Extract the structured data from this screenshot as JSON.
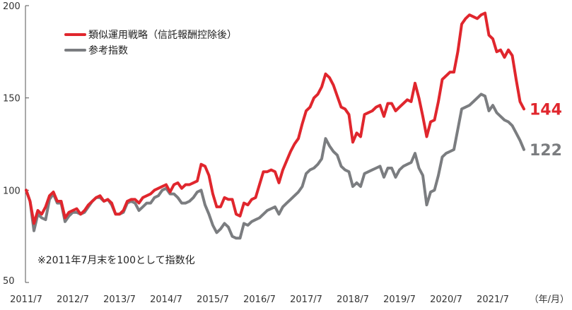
{
  "chart_data": {
    "type": "line",
    "title": "",
    "xlabel": "",
    "ylabel": "",
    "x_unit_label": "（年/月）",
    "ylim": [
      50,
      200
    ],
    "y_ticks": [
      50,
      100,
      150,
      200
    ],
    "x_tick_labels": [
      "2011/7",
      "2012/7",
      "2013/7",
      "2014/7",
      "2015/7",
      "2016/7",
      "2017/7",
      "2018/7",
      "2019/7",
      "2020/7",
      "2021/7"
    ],
    "grid": false,
    "legend_position": "top-left",
    "note": "※2011年7月末を100として指数化",
    "x": [
      "2011/7",
      "2011/8",
      "2011/9",
      "2011/10",
      "2011/11",
      "2011/12",
      "2012/1",
      "2012/2",
      "2012/3",
      "2012/4",
      "2012/5",
      "2012/6",
      "2012/7",
      "2012/8",
      "2012/9",
      "2012/10",
      "2012/11",
      "2012/12",
      "2013/1",
      "2013/2",
      "2013/3",
      "2013/4",
      "2013/5",
      "2013/6",
      "2013/7",
      "2013/8",
      "2013/9",
      "2013/10",
      "2013/11",
      "2013/12",
      "2014/1",
      "2014/2",
      "2014/3",
      "2014/4",
      "2014/5",
      "2014/6",
      "2014/7",
      "2014/8",
      "2014/9",
      "2014/10",
      "2014/11",
      "2014/12",
      "2015/1",
      "2015/2",
      "2015/3",
      "2015/4",
      "2015/5",
      "2015/6",
      "2015/7",
      "2015/8",
      "2015/9",
      "2015/10",
      "2015/11",
      "2015/12",
      "2016/1",
      "2016/2",
      "2016/3",
      "2016/4",
      "2016/5",
      "2016/6",
      "2016/7",
      "2016/8",
      "2016/9",
      "2016/10",
      "2016/11",
      "2016/12",
      "2017/1",
      "2017/2",
      "2017/3",
      "2017/4",
      "2017/5",
      "2017/6",
      "2017/7",
      "2017/8",
      "2017/9",
      "2017/10",
      "2017/11",
      "2017/12",
      "2018/1",
      "2018/2",
      "2018/3",
      "2018/4",
      "2018/5",
      "2018/6",
      "2018/7",
      "2018/8",
      "2018/9",
      "2018/10",
      "2018/11",
      "2018/12",
      "2019/1",
      "2019/2",
      "2019/3",
      "2019/4",
      "2019/5",
      "2019/6",
      "2019/7",
      "2019/8",
      "2019/9",
      "2019/10",
      "2019/11",
      "2019/12",
      "2020/1",
      "2020/2",
      "2020/3",
      "2020/4",
      "2020/5",
      "2020/6",
      "2020/7",
      "2020/8",
      "2020/9",
      "2020/10",
      "2020/11",
      "2020/12",
      "2021/1",
      "2021/2",
      "2021/3",
      "2021/4",
      "2021/5",
      "2021/6",
      "2021/7",
      "2021/8",
      "2021/9",
      "2021/10",
      "2021/11",
      "2021/12",
      "2022/1",
      "2022/2",
      "2022/3"
    ],
    "series": [
      {
        "name": "類似運用戦略（信託報酬控除後）",
        "color": "#e0262d",
        "end_label": "144",
        "values": [
          100,
          94,
          82,
          89,
          87,
          91,
          97,
          99,
          94,
          94,
          85,
          88,
          89,
          90,
          87,
          89,
          92,
          94,
          96,
          97,
          94,
          95,
          93,
          87,
          87,
          89,
          94,
          95,
          95,
          93,
          96,
          97,
          98,
          100,
          101,
          102,
          103,
          99,
          103,
          104,
          101,
          103,
          103,
          104,
          105,
          114,
          113,
          108,
          98,
          91,
          91,
          96,
          95,
          95,
          87,
          86,
          93,
          92,
          95,
          96,
          103,
          110,
          110,
          111,
          110,
          104,
          111,
          116,
          121,
          125,
          128,
          136,
          143,
          145,
          150,
          152,
          156,
          163,
          161,
          157,
          151,
          145,
          144,
          141,
          126,
          131,
          129,
          141,
          142,
          143,
          145,
          146,
          140,
          147,
          147,
          143,
          145,
          147,
          149,
          148,
          158,
          150,
          140,
          129,
          137,
          138,
          148,
          160,
          162,
          164,
          164,
          175,
          190,
          193,
          195,
          194,
          193,
          195,
          196,
          184,
          182,
          175,
          176,
          172,
          176,
          173,
          160,
          148,
          144
        ]
      },
      {
        "name": "参考指数",
        "color": "#7b7d80",
        "end_label": "122",
        "values": [
          100,
          94,
          78,
          87,
          85,
          84,
          95,
          98,
          93,
          93,
          83,
          86,
          88,
          88,
          87,
          88,
          91,
          94,
          96,
          96,
          94,
          95,
          92,
          87,
          87,
          88,
          93,
          94,
          93,
          89,
          91,
          93,
          93,
          96,
          97,
          100,
          101,
          98,
          98,
          96,
          93,
          93,
          94,
          96,
          99,
          100,
          92,
          87,
          81,
          77,
          79,
          82,
          80,
          75,
          74,
          74,
          82,
          81,
          83,
          84,
          85,
          87,
          89,
          90,
          91,
          87,
          91,
          93,
          95,
          97,
          99,
          102,
          109,
          111,
          112,
          114,
          117,
          128,
          124,
          121,
          119,
          113,
          111,
          110,
          102,
          104,
          102,
          109,
          110,
          111,
          112,
          113,
          107,
          112,
          112,
          107,
          111,
          113,
          114,
          115,
          120,
          112,
          108,
          92,
          99,
          100,
          108,
          118,
          120,
          121,
          122,
          133,
          144,
          145,
          146,
          148,
          150,
          152,
          151,
          143,
          146,
          142,
          140,
          138,
          137,
          135,
          131,
          127,
          122
        ]
      }
    ]
  }
}
